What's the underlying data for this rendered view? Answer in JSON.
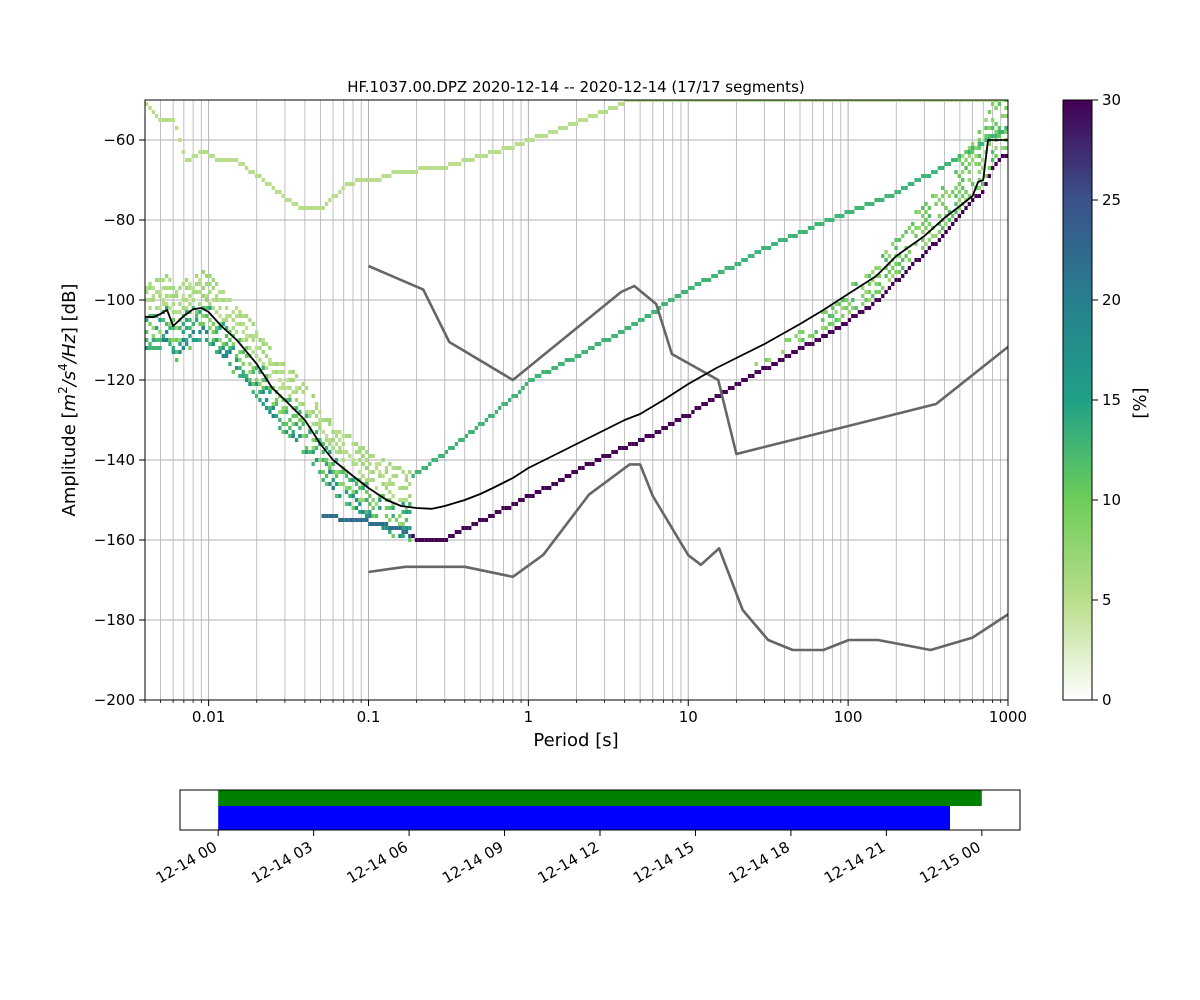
{
  "figure": {
    "title": "HF.1037.00.DPZ   2020-12-14 -- 2020-12-14  (17/17 segments)"
  },
  "chart_data": [
    {
      "type": "heatmap",
      "title": "HF.1037.00.DPZ   2020-12-14 -- 2020-12-14  (17/17 segments)",
      "xlabel": "Period [s]",
      "ylabel_parts": [
        "Amplitude [",
        "m",
        "2",
        "/",
        "s",
        "4",
        "/",
        "Hz",
        "] [dB]"
      ],
      "xscale": "log",
      "xlim": [
        0.004,
        1000
      ],
      "ylim": [
        -200,
        -50
      ],
      "x_ticks": [
        0.01,
        0.1,
        1,
        10,
        100,
        1000
      ],
      "x_tick_labels": [
        "0.01",
        "0.1",
        "1",
        "10",
        "100",
        "1000"
      ],
      "y_ticks": [
        -200,
        -180,
        -160,
        -140,
        -120,
        -100,
        -80,
        -60
      ],
      "y_tick_labels": [
        "−200",
        "−180",
        "−160",
        "−140",
        "−120",
        "−100",
        "−80",
        "−60"
      ],
      "grid": true,
      "colorbar": {
        "label": "[%]",
        "range": [
          0,
          30
        ],
        "ticks": [
          0,
          5,
          10,
          15,
          20,
          25,
          30
        ],
        "tick_labels": [
          "0",
          "5",
          "10",
          "15",
          "20",
          "25",
          "30"
        ],
        "stops": [
          "#ffffff",
          "#b8dd8a",
          "#6dcd59",
          "#1fa187",
          "#277f8e",
          "#3b528b",
          "#440154"
        ]
      },
      "model_line_color": "#666666",
      "mean_line_color": "#000000",
      "high_noise_model": [
        [
          0.1,
          -91.5
        ],
        [
          0.22,
          -97.4
        ],
        [
          0.32,
          -110.5
        ],
        [
          0.8,
          -120
        ],
        [
          3.8,
          -98
        ],
        [
          4.6,
          -96.5
        ],
        [
          6.3,
          -101
        ],
        [
          7.9,
          -113.5
        ],
        [
          15.4,
          -120
        ],
        [
          20,
          -138.5
        ],
        [
          354.8,
          -126
        ],
        [
          10000,
          -80
        ]
      ],
      "low_noise_model": [
        [
          0.1,
          -168
        ],
        [
          0.17,
          -166.7
        ],
        [
          0.4,
          -166.7
        ],
        [
          0.8,
          -169.2
        ],
        [
          1.24,
          -163.7
        ],
        [
          2.4,
          -148.6
        ],
        [
          4.3,
          -141.1
        ],
        [
          5,
          -141.1
        ],
        [
          6,
          -149
        ],
        [
          10,
          -163.8
        ],
        [
          12,
          -166.2
        ],
        [
          15.6,
          -162.1
        ],
        [
          21.9,
          -177.5
        ],
        [
          31.6,
          -185
        ],
        [
          45,
          -187.5
        ],
        [
          70,
          -187.5
        ],
        [
          101,
          -185
        ],
        [
          154,
          -185
        ],
        [
          328,
          -187.5
        ],
        [
          600,
          -184.4
        ],
        [
          1000,
          -178.6
        ]
      ],
      "mean_curve": [
        [
          0.004,
          -104.2
        ],
        [
          0.0045,
          -104.3
        ],
        [
          0.005,
          -103.5
        ],
        [
          0.0055,
          -102.5
        ],
        [
          0.006,
          -106.5
        ],
        [
          0.007,
          -104
        ],
        [
          0.008,
          -102.3
        ],
        [
          0.009,
          -102
        ],
        [
          0.01,
          -103
        ],
        [
          0.012,
          -106.5
        ],
        [
          0.015,
          -110
        ],
        [
          0.02,
          -116
        ],
        [
          0.025,
          -122
        ],
        [
          0.03,
          -125
        ],
        [
          0.04,
          -130
        ],
        [
          0.05,
          -136
        ],
        [
          0.06,
          -140
        ],
        [
          0.08,
          -144
        ],
        [
          0.1,
          -147
        ],
        [
          0.13,
          -150
        ],
        [
          0.16,
          -151.5
        ],
        [
          0.2,
          -152
        ],
        [
          0.25,
          -152.2
        ],
        [
          0.3,
          -151.5
        ],
        [
          0.4,
          -150
        ],
        [
          0.5,
          -148.5
        ],
        [
          0.6,
          -147
        ],
        [
          0.8,
          -144.5
        ],
        [
          1,
          -142
        ],
        [
          1.5,
          -138.5
        ],
        [
          2,
          -136
        ],
        [
          3,
          -132.5
        ],
        [
          4,
          -130
        ],
        [
          5,
          -128.5
        ],
        [
          7,
          -125
        ],
        [
          10,
          -121
        ],
        [
          15,
          -117
        ],
        [
          20,
          -114.5
        ],
        [
          30,
          -111
        ],
        [
          50,
          -106
        ],
        [
          70,
          -102.5
        ],
        [
          100,
          -98.5
        ],
        [
          150,
          -94
        ],
        [
          200,
          -89
        ],
        [
          300,
          -84
        ],
        [
          400,
          -79.5
        ],
        [
          500,
          -76.5
        ],
        [
          600,
          -74
        ],
        [
          650,
          -70.5
        ],
        [
          700,
          -70
        ],
        [
          750,
          -60
        ],
        [
          1000,
          -60
        ]
      ],
      "mode_curve": [
        [
          0.15,
          -158
        ],
        [
          0.2,
          -160
        ],
        [
          0.3,
          -159.5
        ],
        [
          0.4,
          -157
        ],
        [
          0.6,
          -153.5
        ],
        [
          1,
          -149
        ],
        [
          1.5,
          -145.5
        ],
        [
          2,
          -142.5
        ],
        [
          3,
          -139
        ],
        [
          5,
          -135
        ],
        [
          7,
          -132
        ],
        [
          10,
          -128.5
        ],
        [
          15,
          -124
        ],
        [
          20,
          -121
        ],
        [
          30,
          -117
        ],
        [
          50,
          -112
        ],
        [
          70,
          -109
        ],
        [
          100,
          -105
        ],
        [
          150,
          -100
        ],
        [
          200,
          -95
        ],
        [
          300,
          -88
        ],
        [
          400,
          -83
        ],
        [
          500,
          -78
        ],
        [
          600,
          -75
        ],
        [
          700,
          -72
        ],
        [
          800,
          -66
        ],
        [
          1000,
          -63
        ]
      ],
      "upper_band_curve": [
        [
          0.15,
          -146
        ],
        [
          0.2,
          -143
        ],
        [
          0.3,
          -138
        ],
        [
          0.5,
          -131
        ],
        [
          0.8,
          -124
        ],
        [
          1,
          -120
        ],
        [
          2,
          -114
        ],
        [
          3,
          -110
        ],
        [
          5,
          -105
        ],
        [
          10,
          -97
        ],
        [
          20,
          -91
        ],
        [
          30,
          -87
        ],
        [
          50,
          -83
        ],
        [
          100,
          -78
        ],
        [
          200,
          -73
        ],
        [
          300,
          -69
        ],
        [
          400,
          -66
        ],
        [
          600,
          -62
        ],
        [
          800,
          -59
        ],
        [
          1000,
          -57
        ]
      ],
      "high_outlier_curve": [
        [
          0.004,
          -51
        ],
        [
          0.0045,
          -53.5
        ],
        [
          0.005,
          -55.5
        ],
        [
          0.006,
          -55.5
        ],
        [
          0.007,
          -65
        ],
        [
          0.008,
          -64
        ],
        [
          0.009,
          -62.5
        ],
        [
          0.01,
          -64
        ],
        [
          0.012,
          -65.5
        ],
        [
          0.015,
          -65.5
        ],
        [
          0.02,
          -69
        ],
        [
          0.025,
          -72
        ],
        [
          0.03,
          -75
        ],
        [
          0.04,
          -77.5
        ],
        [
          0.05,
          -77.5
        ],
        [
          0.06,
          -74
        ],
        [
          0.07,
          -71.5
        ],
        [
          0.08,
          -70.5
        ],
        [
          0.1,
          -70.5
        ],
        [
          0.15,
          -68
        ],
        [
          0.2,
          -67.5
        ],
        [
          0.3,
          -66.5
        ],
        [
          0.5,
          -64
        ],
        [
          0.8,
          -61.5
        ],
        [
          1,
          -60
        ],
        [
          1.5,
          -57.5
        ],
        [
          2,
          -55.5
        ],
        [
          3,
          -52.5
        ],
        [
          4,
          -50.5
        ],
        [
          10,
          -50
        ],
        [
          100,
          -50
        ],
        [
          1000,
          -50
        ]
      ]
    },
    {
      "type": "bar",
      "title": "",
      "xlabel": "",
      "ylabel": "",
      "x_ticks_labels": [
        "12-14 00",
        "12-14 03",
        "12-14 06",
        "12-14 09",
        "12-14 12",
        "12-14 15",
        "12-14 18",
        "12-14 21",
        "12-15 00"
      ],
      "xlim_hours": [
        -1.2,
        25.2
      ],
      "series": [
        {
          "color": "#008000",
          "start_hour": 0,
          "end_hour": 24
        },
        {
          "color": "#0000ff",
          "start_hour": 0,
          "end_hour": 23
        }
      ]
    }
  ]
}
